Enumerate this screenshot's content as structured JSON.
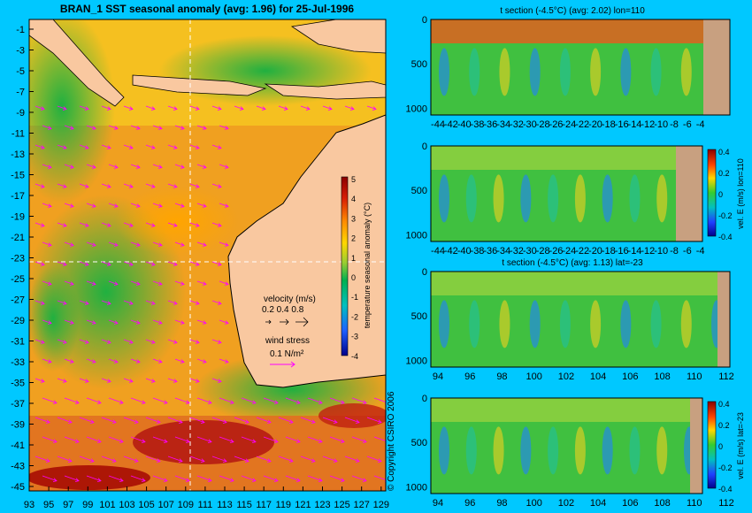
{
  "main_map": {
    "title": "BRAN_1  SST seasonal anomaly  (avg: 1.96) for 25-Jul-1996",
    "lat_ticks": [
      "-1",
      "-3",
      "-5",
      "-7",
      "-9",
      "-11",
      "-13",
      "-15",
      "-17",
      "-19",
      "-21",
      "-23",
      "-25",
      "-27",
      "-29",
      "-31",
      "-33",
      "-35",
      "-37",
      "-39",
      "-41",
      "-43",
      "-45"
    ],
    "lon_ticks": [
      "93",
      "95",
      "97",
      "99",
      "101",
      "103",
      "105",
      "107",
      "109",
      "111",
      "113",
      "115",
      "117",
      "119",
      "121",
      "123",
      "125",
      "127",
      "129"
    ],
    "colorbar": {
      "ticks": [
        "5",
        "4",
        "3",
        "2",
        "1",
        "0",
        "-1",
        "-2",
        "-3",
        "-4"
      ],
      "label": "temperature seasonal anomaly (°C)"
    },
    "velocity_legend": {
      "title": "velocity (m/s)",
      "values": "0.2 0.4 0.8"
    },
    "wind_legend": {
      "title": "wind stress",
      "value": "0.1 N/m²"
    },
    "copyright": "© Copyright CSIRO 2006",
    "colors": {
      "ocean": "#00c8ff",
      "land": "#f9c8a0",
      "arrows": "#ff00ff"
    }
  },
  "panels": [
    {
      "id": "t-section-lon",
      "title": "t section (-4.5°C) (avg: 2.02) lon=110",
      "y_ticks": [
        "0",
        "500",
        "1000"
      ],
      "x_ticks": [
        "-44",
        "-42",
        "-40",
        "-38",
        "-36",
        "-34",
        "-32",
        "-30",
        "-28",
        "-26",
        "-24",
        "-22",
        "-20",
        "-18",
        "-16",
        "-14",
        "-12",
        "-10",
        "-8",
        "-6",
        "-4"
      ],
      "has_colorbar": false
    },
    {
      "id": "vel-e-lon",
      "title": "",
      "y_ticks": [
        "0",
        "500",
        "1000"
      ],
      "x_ticks": [
        "-44",
        "-42",
        "-40",
        "-38",
        "-36",
        "-34",
        "-32",
        "-30",
        "-28",
        "-26",
        "-24",
        "-22",
        "-20",
        "-18",
        "-16",
        "-14",
        "-12",
        "-10",
        "-8",
        "-6",
        "-4"
      ],
      "has_colorbar": true,
      "cb_ticks": [
        "0.4",
        "0.2",
        "0",
        "-0.2",
        "-0.4"
      ],
      "cb_label": "vel. E (m/s) lon=110"
    },
    {
      "id": "t-section-lat",
      "title": "t section (-4.5°C) (avg: 1.13) lat=-23",
      "y_ticks": [
        "0",
        "500",
        "1000"
      ],
      "x_ticks": [
        "94",
        "96",
        "98",
        "100",
        "102",
        "104",
        "106",
        "108",
        "110",
        "112"
      ],
      "has_colorbar": false
    },
    {
      "id": "vel-e-lat",
      "title": "",
      "y_ticks": [
        "0",
        "500",
        "1000"
      ],
      "x_ticks": [
        "94",
        "96",
        "98",
        "100",
        "102",
        "104",
        "106",
        "108",
        "110",
        "112"
      ],
      "has_colorbar": true,
      "cb_ticks": [
        "0.4",
        "0.2",
        "0",
        "-0.2",
        "-0.4"
      ],
      "cb_label": "vel. E (m/s) lat=-23"
    }
  ]
}
